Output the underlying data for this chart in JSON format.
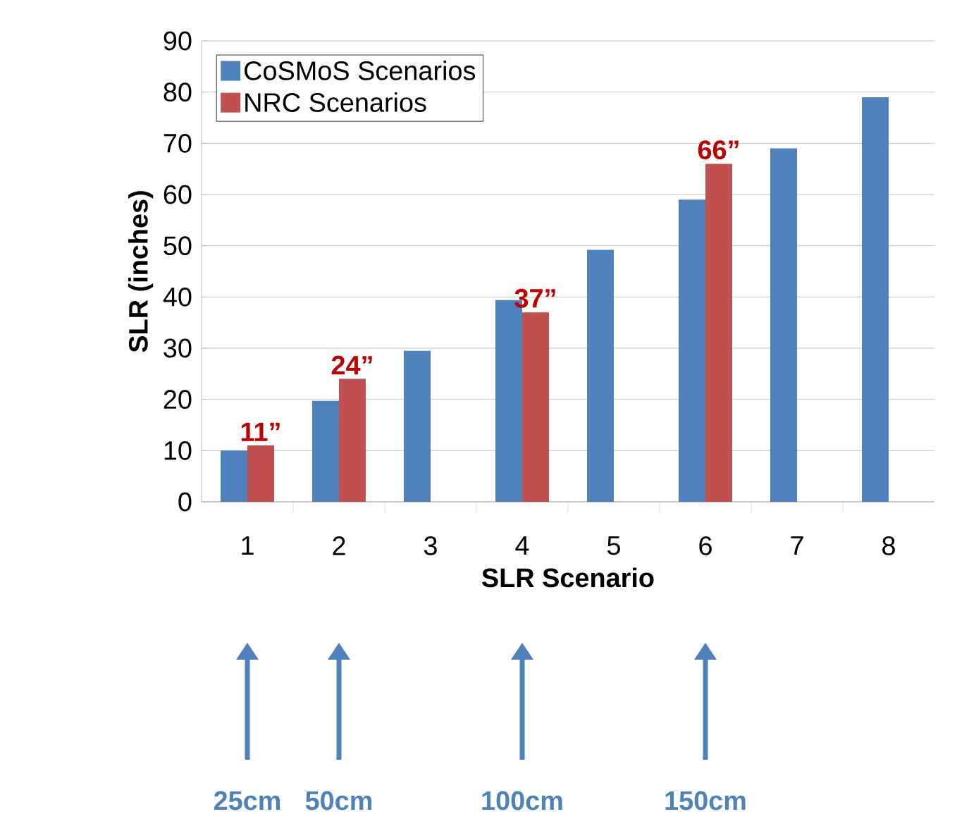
{
  "chart_data": {
    "type": "bar",
    "xlabel": "SLR Scenario",
    "ylabel": "SLR (inches)",
    "categories": [
      "1",
      "2",
      "3",
      "4",
      "5",
      "6",
      "7",
      "8"
    ],
    "series": [
      {
        "name": "CoSMoS Scenarios",
        "color": "#4f81bd",
        "values": [
          10,
          19.7,
          29.5,
          39.4,
          49.2,
          59,
          69,
          79
        ]
      },
      {
        "name": "NRC Scenarios",
        "color": "#c0504d",
        "values": [
          11,
          24,
          null,
          37,
          null,
          66,
          null,
          null
        ],
        "value_labels": [
          "11”",
          "24”",
          null,
          "37”",
          null,
          "66”",
          null,
          null
        ]
      }
    ],
    "ylim": [
      0,
      90
    ],
    "yticks": [
      0,
      10,
      20,
      30,
      40,
      50,
      60,
      70,
      80,
      90
    ],
    "grid": "y",
    "legend": "top left",
    "annotations": [
      "25cm",
      "50cm",
      "100cm",
      "150cm"
    ]
  }
}
